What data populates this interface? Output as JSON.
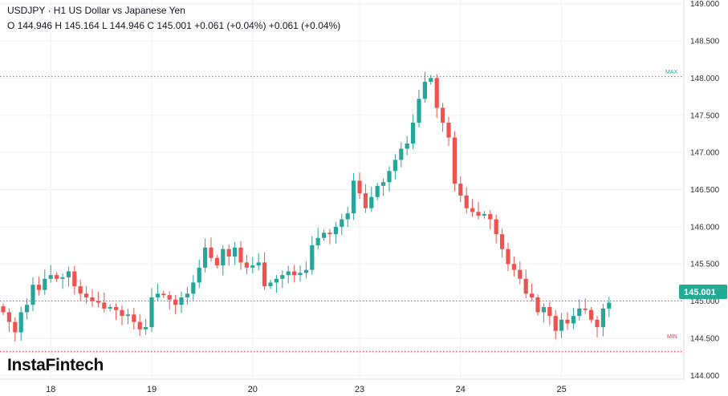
{
  "header": {
    "title": "USDJPY · H1 US Dollar vs Japanese Yen",
    "ohlc": "O 144.946 H 145.164 L 144.946 C 145.001 +0.061 (+0.04%) +0.061 (+0.04%)"
  },
  "brand": "InstaFintech",
  "colors": {
    "up": "#26a69a",
    "down": "#ef5350",
    "grid": "#eef0f3",
    "current_badge": "#22ab94"
  },
  "chart_data": {
    "type": "candlestick",
    "instrument": "USDJPY",
    "timeframe": "H1",
    "ylim": [
      143.95,
      149.05
    ],
    "y_ticks": [
      "144.000",
      "144.500",
      "145.000",
      "145.500",
      "146.000",
      "146.500",
      "147.000",
      "147.500",
      "148.000",
      "148.500",
      "149.000"
    ],
    "x_ticks": [
      {
        "label": "18",
        "index": 8
      },
      {
        "label": "19",
        "index": 25
      },
      {
        "label": "20",
        "index": 42
      },
      {
        "label": "23",
        "index": 60
      },
      {
        "label": "24",
        "index": 77
      },
      {
        "label": "25",
        "index": 94
      }
    ],
    "max_label": "MAX",
    "min_label": "MIN",
    "max_value": 148.02,
    "min_value": 144.32,
    "current_price": "145.001",
    "closes": [
      144.85,
      144.72,
      144.58,
      144.85,
      144.95,
      145.22,
      145.15,
      145.3,
      145.35,
      145.3,
      145.32,
      145.4,
      145.2,
      145.1,
      145.05,
      145.0,
      144.98,
      144.9,
      144.92,
      144.88,
      144.8,
      144.82,
      144.72,
      144.62,
      144.65,
      145.05,
      145.1,
      145.08,
      145.02,
      144.95,
      145.05,
      145.1,
      145.25,
      145.45,
      145.72,
      145.58,
      145.48,
      145.7,
      145.6,
      145.72,
      145.52,
      145.45,
      145.48,
      145.52,
      145.2,
      145.25,
      145.3,
      145.35,
      145.4,
      145.35,
      145.38,
      145.42,
      145.75,
      145.85,
      145.92,
      145.9,
      146.0,
      146.1,
      146.18,
      146.62,
      146.45,
      146.25,
      146.4,
      146.55,
      146.6,
      146.75,
      146.9,
      147.05,
      147.12,
      147.4,
      147.72,
      147.95,
      148.0,
      147.6,
      147.4,
      147.2,
      146.58,
      146.42,
      146.25,
      146.2,
      146.15,
      146.17,
      146.1,
      145.9,
      145.7,
      145.5,
      145.42,
      145.3,
      145.1,
      145.05,
      144.85,
      144.92,
      144.8,
      144.6,
      144.75,
      144.7,
      144.8,
      144.9,
      144.88,
      144.75,
      144.65,
      144.9,
      144.98
    ]
  }
}
